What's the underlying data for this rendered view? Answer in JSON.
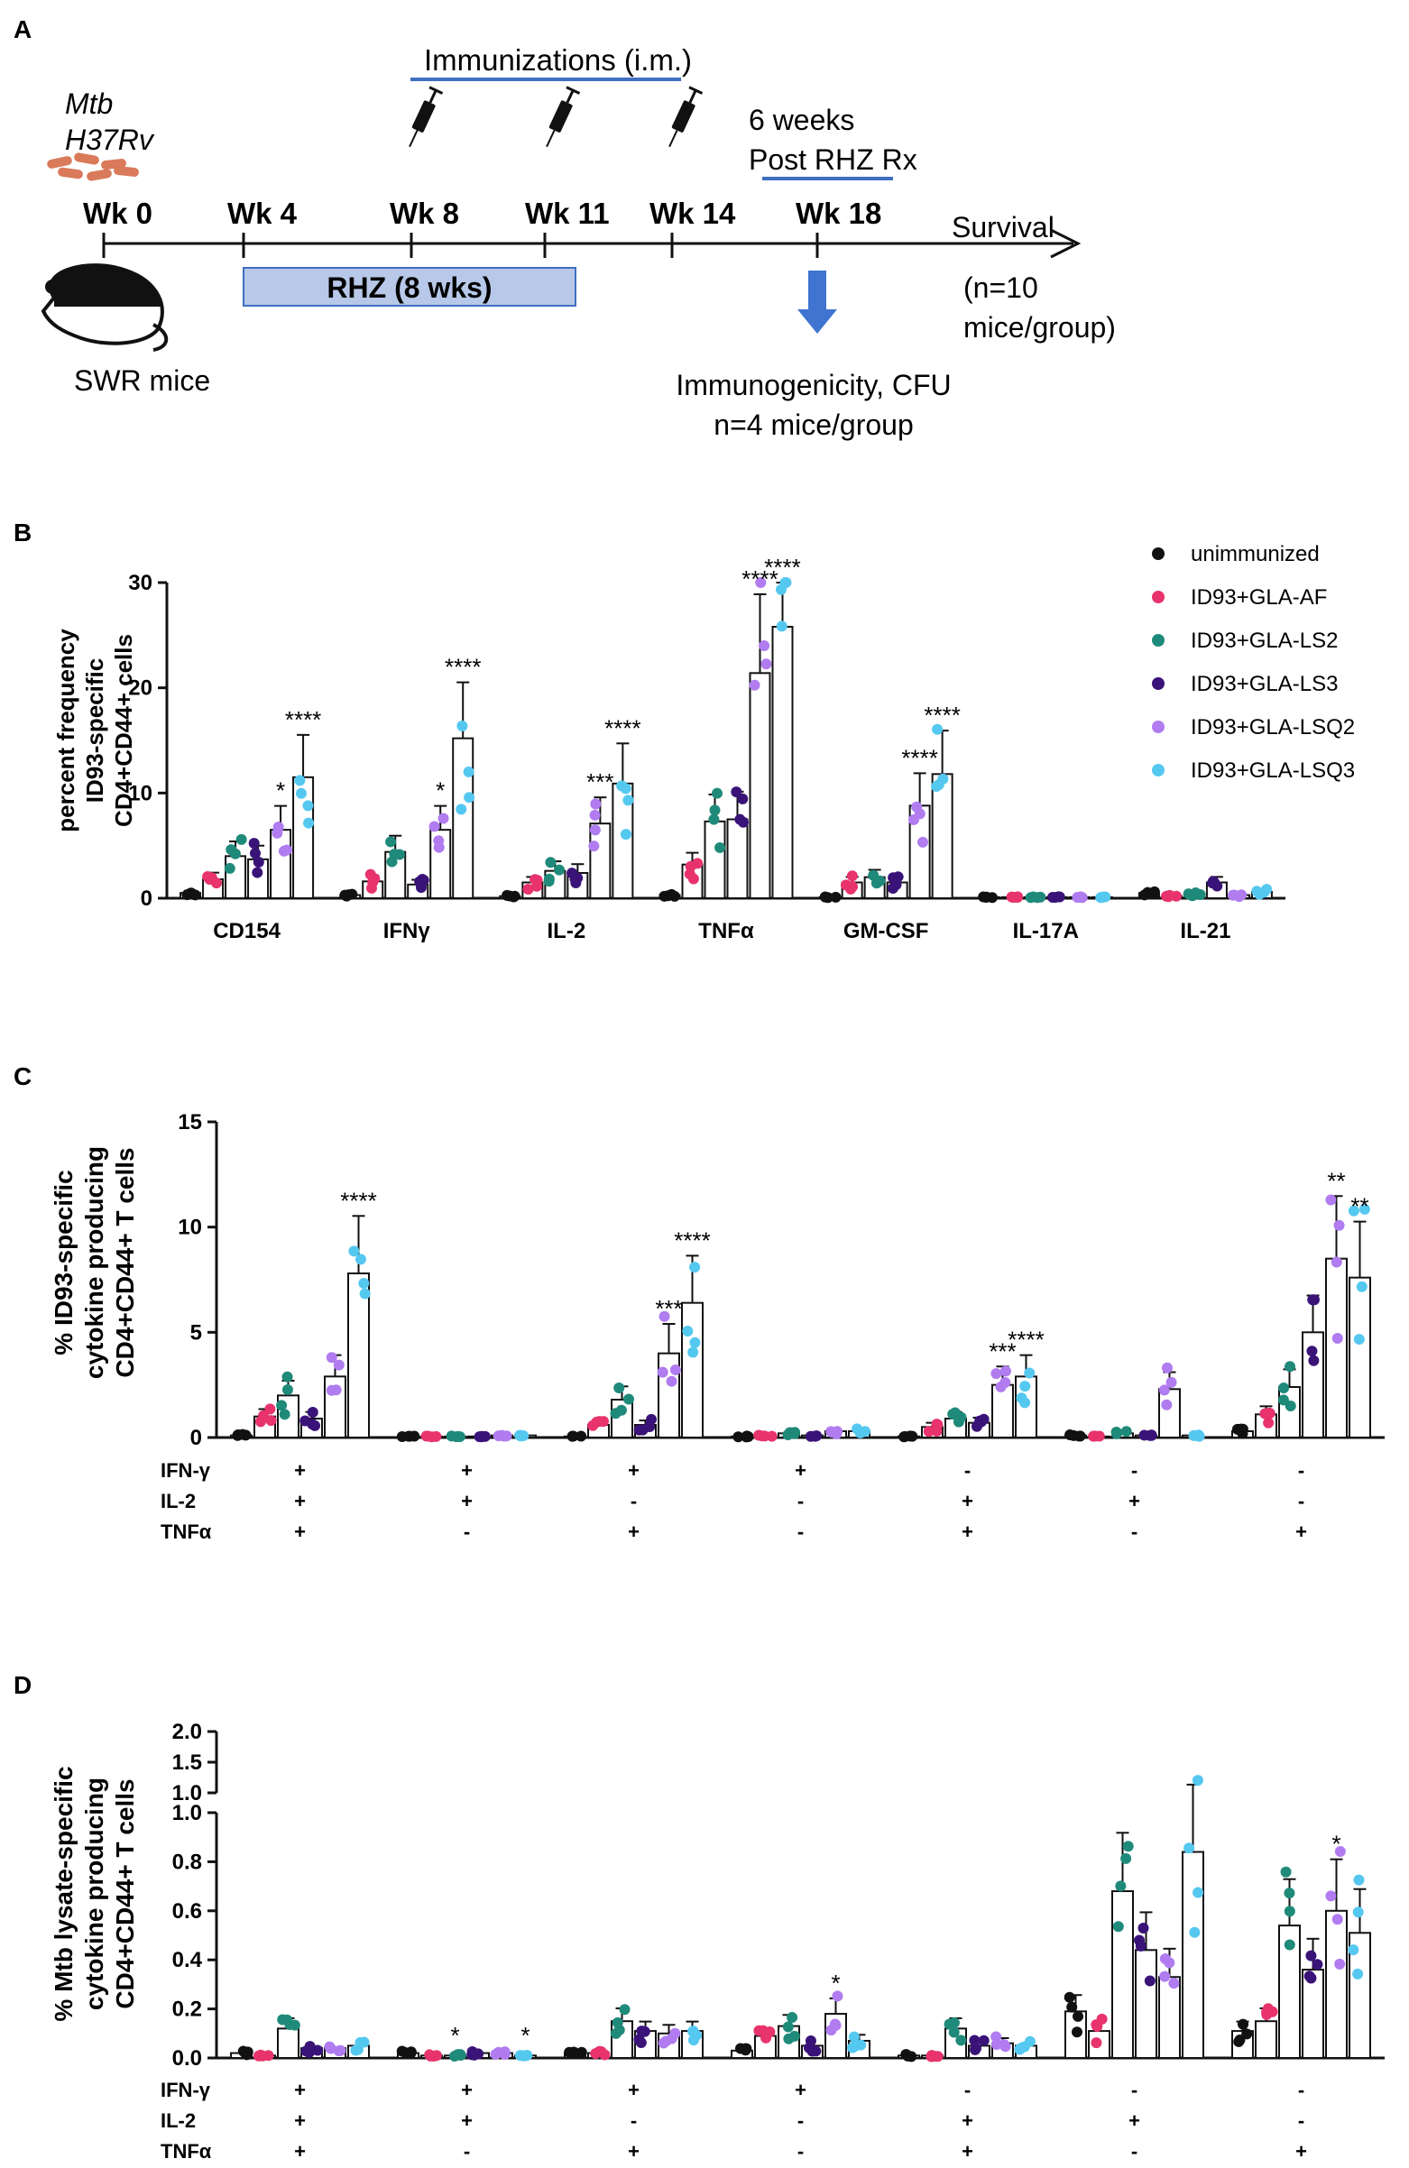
{
  "colors": {
    "unimmunized": "#111111",
    "af": "#e8336d",
    "ls2": "#1f8a7a",
    "ls3": "#3a1378",
    "lsq2": "#b07cf0",
    "lsq3": "#55c8f0",
    "timeline_blue": "#3f6fbf",
    "rhz_fill": "#b7c8e8",
    "arrow_blue": "#3f74d0",
    "bacteria": "#d97a5a"
  },
  "panel_a": {
    "letter": "A",
    "immunizations_label": "Immunizations (i.m.)",
    "mtb_label": "Mtb",
    "strain_label": "H37Rv",
    "weeks_post_1": "6 weeks",
    "weeks_post_2": "Post RHZ Rx",
    "timepoints": [
      "Wk 0",
      "Wk 4",
      "Wk 8",
      "Wk 11",
      "Wk 14",
      "Wk 18"
    ],
    "survival_label": "Survival",
    "survival_n_1": "(n=10",
    "survival_n_2": "mice/group)",
    "rhz_label": "RHZ (8 wks)",
    "mouse_label": "SWR mice",
    "readout_1": "Immunogenicity,  CFU",
    "readout_2": "n=4 mice/group",
    "syringe_icon": "syringe-icon",
    "mouse_icon": "mouse-icon",
    "bacteria_icon": "bacteria-icon",
    "arrow_icon": "down-arrow-icon"
  },
  "legend": [
    "unimmunized",
    "ID93+GLA-AF",
    "ID93+GLA-LS2",
    "ID93+GLA-LS3",
    "ID93+GLA-LSQ2",
    "ID93+GLA-LSQ3"
  ],
  "chart_data": [
    {
      "id": "B",
      "letter": "B",
      "type": "bar",
      "ylabel_lines": [
        "percent frequency",
        "ID93-specific",
        "CD4+CD44+ cells"
      ],
      "ylim": [
        0,
        30
      ],
      "yticks": [
        "0",
        "10",
        "20",
        "30"
      ],
      "categories": [
        "CD154",
        "IFNγ",
        "IL-2",
        "TNFα",
        "GM-CSF",
        "IL-17A",
        "IL-21"
      ],
      "series": [
        {
          "name": "unimmunized",
          "values": [
            0.5,
            0.3,
            0.2,
            0.3,
            0.1,
            0.1,
            0.5
          ]
        },
        {
          "name": "ID93+GLA-AF",
          "values": [
            1.8,
            1.6,
            1.5,
            3.2,
            1.5,
            0.1,
            0.2
          ]
        },
        {
          "name": "ID93+GLA-LS2",
          "values": [
            4.0,
            4.4,
            2.6,
            7.3,
            2.0,
            0.1,
            0.4
          ]
        },
        {
          "name": "ID93+GLA-LS3",
          "values": [
            3.7,
            1.3,
            2.4,
            7.5,
            1.5,
            0.1,
            1.5
          ]
        },
        {
          "name": "ID93+GLA-LSQ2",
          "values": [
            6.5,
            6.5,
            7.1,
            21.4,
            8.8,
            0.1,
            0.3
          ]
        },
        {
          "name": "ID93+GLA-LSQ3",
          "values": [
            11.5,
            15.2,
            10.9,
            25.8,
            11.8,
            0.1,
            0.6
          ]
        }
      ],
      "significance": [
        {
          "category": 0,
          "series": 4,
          "label": "*"
        },
        {
          "category": 0,
          "series": 5,
          "label": "****"
        },
        {
          "category": 1,
          "series": 4,
          "label": "*"
        },
        {
          "category": 1,
          "series": 5,
          "label": "****"
        },
        {
          "category": 2,
          "series": 4,
          "label": "***"
        },
        {
          "category": 2,
          "series": 5,
          "label": "****"
        },
        {
          "category": 3,
          "series": 4,
          "label": "****"
        },
        {
          "category": 3,
          "series": 5,
          "label": "****"
        },
        {
          "category": 4,
          "series": 4,
          "label": "****"
        },
        {
          "category": 4,
          "series": 5,
          "label": "****"
        }
      ]
    },
    {
      "id": "C",
      "letter": "C",
      "type": "bar",
      "ylabel_lines": [
        "% ID93-specific",
        "cytokine producing",
        "CD4+CD44+ T cells"
      ],
      "ylim": [
        0,
        15
      ],
      "yticks": [
        "0",
        "5",
        "10",
        "15"
      ],
      "row_labels": [
        "IFN-γ",
        "IL-2",
        "TNFα"
      ],
      "categories_signs": [
        [
          "+",
          "+",
          "+"
        ],
        [
          "+",
          "+",
          "-"
        ],
        [
          "+",
          "-",
          "+"
        ],
        [
          "+",
          "-",
          "-"
        ],
        [
          "-",
          "+",
          "+"
        ],
        [
          "-",
          "+",
          "-"
        ],
        [
          "-",
          "-",
          "+"
        ]
      ],
      "series": [
        {
          "name": "unimmunized",
          "values": [
            0.1,
            0.05,
            0.05,
            0.05,
            0.05,
            0.1,
            0.3
          ]
        },
        {
          "name": "ID93+GLA-AF",
          "values": [
            1.0,
            0.05,
            0.6,
            0.1,
            0.5,
            0.05,
            1.1
          ]
        },
        {
          "name": "ID93+GLA-LS2",
          "values": [
            2.0,
            0.05,
            1.8,
            0.2,
            0.9,
            0.2,
            2.4
          ]
        },
        {
          "name": "ID93+GLA-LS3",
          "values": [
            0.9,
            0.05,
            0.6,
            0.1,
            0.7,
            0.1,
            5.0
          ]
        },
        {
          "name": "ID93+GLA-LSQ2",
          "values": [
            2.9,
            0.1,
            4.0,
            0.3,
            2.5,
            2.3,
            8.5
          ]
        },
        {
          "name": "ID93+GLA-LSQ3",
          "values": [
            7.8,
            0.1,
            6.4,
            0.3,
            2.9,
            0.1,
            7.6
          ]
        }
      ],
      "significance": [
        {
          "category": 0,
          "series": 5,
          "label": "****"
        },
        {
          "category": 2,
          "series": 4,
          "label": "***"
        },
        {
          "category": 2,
          "series": 5,
          "label": "****"
        },
        {
          "category": 4,
          "series": 4,
          "label": "***"
        },
        {
          "category": 4,
          "series": 5,
          "label": "****"
        },
        {
          "category": 6,
          "series": 4,
          "label": "**"
        },
        {
          "category": 6,
          "series": 5,
          "label": "**"
        }
      ]
    },
    {
      "id": "D",
      "letter": "D",
      "type": "bar",
      "ylabel_lines": [
        "% Mtb lysate-specific",
        "cytokine producing",
        "CD4+CD44+ T cells"
      ],
      "ylim_lower": [
        0,
        1.0
      ],
      "ylim_upper": [
        1.0,
        2.0
      ],
      "yticks_lower": [
        "0.0",
        "0.2",
        "0.4",
        "0.6",
        "0.8",
        "1.0"
      ],
      "yticks_upper": [
        "1.0",
        "1.5",
        "2.0"
      ],
      "row_labels": [
        "IFN-γ",
        "IL-2",
        "TNFα"
      ],
      "categories_signs": [
        [
          "+",
          "+",
          "+"
        ],
        [
          "+",
          "+",
          "-"
        ],
        [
          "+",
          "-",
          "+"
        ],
        [
          "+",
          "-",
          "-"
        ],
        [
          "-",
          "+",
          "+"
        ],
        [
          "-",
          "+",
          "-"
        ],
        [
          "-",
          "-",
          "+"
        ]
      ],
      "series": [
        {
          "name": "unimmunized",
          "values": [
            0.02,
            0.02,
            0.02,
            0.03,
            0.01,
            0.19,
            0.11
          ]
        },
        {
          "name": "ID93+GLA-AF",
          "values": [
            0.01,
            0.01,
            0.02,
            0.09,
            0.01,
            0.11,
            0.15
          ]
        },
        {
          "name": "ID93+GLA-LS2",
          "values": [
            0.12,
            0.01,
            0.15,
            0.13,
            0.12,
            0.68,
            0.54
          ]
        },
        {
          "name": "ID93+GLA-LS3",
          "values": [
            0.04,
            0.02,
            0.11,
            0.05,
            0.05,
            0.44,
            0.36
          ]
        },
        {
          "name": "ID93+GLA-LSQ2",
          "values": [
            0.04,
            0.02,
            0.1,
            0.18,
            0.06,
            0.33,
            0.6
          ]
        },
        {
          "name": "ID93+GLA-LSQ3",
          "values": [
            0.05,
            0.01,
            0.11,
            0.07,
            0.05,
            0.84,
            0.51
          ]
        }
      ],
      "significance": [
        {
          "category": 1,
          "series": 2,
          "label": "*"
        },
        {
          "category": 1,
          "series": 5,
          "label": "*"
        },
        {
          "category": 3,
          "series": 4,
          "label": "*"
        },
        {
          "category": 6,
          "series": 4,
          "label": "*"
        }
      ]
    }
  ]
}
